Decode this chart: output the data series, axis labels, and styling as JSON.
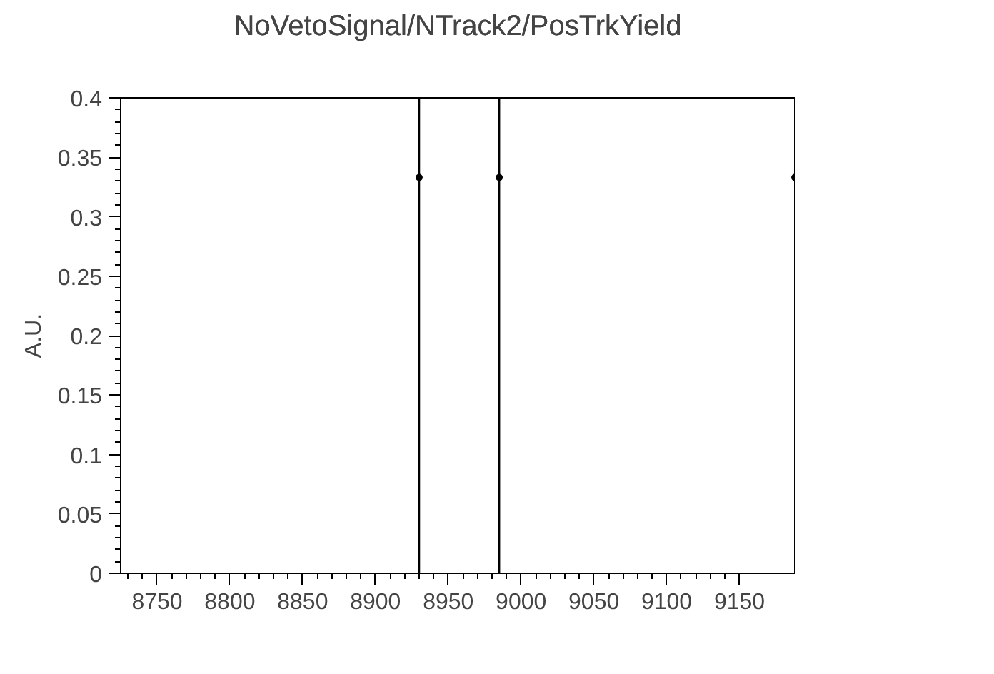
{
  "chart_data": {
    "type": "scatter",
    "title": "NoVetoSignal/NTrack2/PosTrkYield",
    "ylabel": "A.U.",
    "x": [
      8930,
      8985,
      9188
    ],
    "values": [
      0.333,
      0.333,
      0.333
    ],
    "errors": [
      [
        0,
        0.4
      ],
      [
        0,
        0.4
      ],
      null
    ],
    "color": "#000000",
    "marker": "circle",
    "xlim": [
      8725,
      9188
    ],
    "ylim": [
      0,
      0.4
    ],
    "xticks": [
      8750,
      8800,
      8850,
      8900,
      8950,
      9000,
      9050,
      9100,
      9150
    ],
    "yticks": [
      0,
      0.05,
      0.1,
      0.15,
      0.2,
      0.25,
      0.3,
      0.35,
      0.4
    ],
    "grid": false
  }
}
